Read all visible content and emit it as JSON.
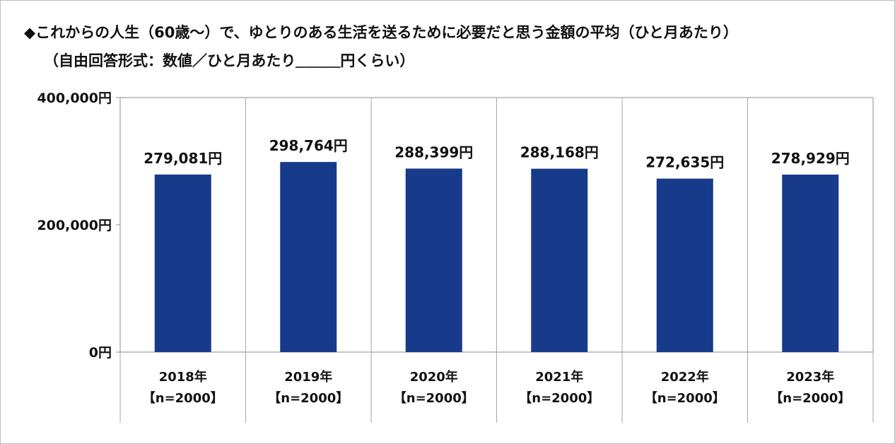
{
  "title": "◆これからの人生（60歳～）で、ゆとりのある生活を送るために必要だと思う金額の平均（ひと月あたり）",
  "subtitle": "（自由回答形式：数値／ひと月あたり＿＿＿円くらい）",
  "chart_data": {
    "type": "bar",
    "categories": [
      "2018年",
      "2019年",
      "2020年",
      "2021年",
      "2022年",
      "2023年"
    ],
    "category_sublabels": [
      "【n=2000】",
      "【n=2000】",
      "【n=2000】",
      "【n=2000】",
      "【n=2000】",
      "【n=2000】"
    ],
    "values": [
      279081,
      298764,
      288399,
      288168,
      272635,
      278929
    ],
    "data_labels": [
      "279,081円",
      "298,764円",
      "288,399円",
      "288,168円",
      "272,635円",
      "278,929円"
    ],
    "ylim": [
      0,
      400000
    ],
    "yticks": [
      0,
      200000,
      400000
    ],
    "ytick_labels": [
      "0円",
      "200,000円",
      "400,000円"
    ],
    "grid": "vertical-separators",
    "legend": "none",
    "colors": {
      "bar": "#173a8a",
      "axis": "#8c8c8c",
      "separator": "#a6a6a6"
    }
  }
}
